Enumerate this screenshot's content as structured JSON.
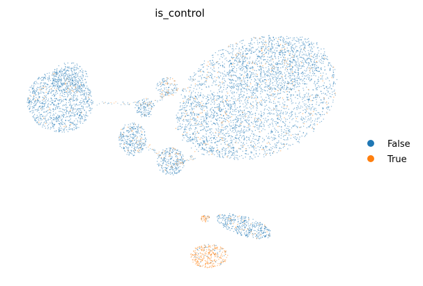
{
  "chart_data": {
    "type": "scatter",
    "title": "is_control",
    "xlabel": "",
    "ylabel": "",
    "grid": false,
    "axes_visible": false,
    "legend_position": "right",
    "series": [
      {
        "name": "False",
        "color": "#1f77b4"
      },
      {
        "name": "True",
        "color": "#ff7f0e"
      }
    ]
  }
}
